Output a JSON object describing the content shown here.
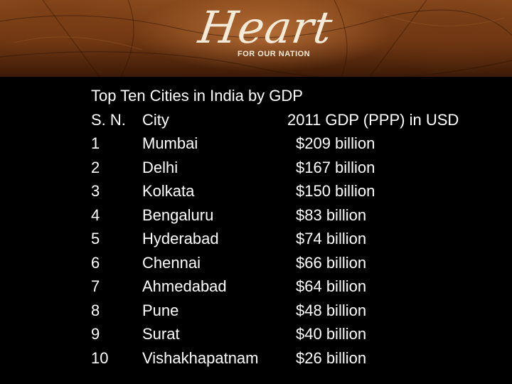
{
  "logo": {
    "script_text": "Heart",
    "subtitle": "FOR OUR NATION"
  },
  "table": {
    "title": "Top Ten Cities in India by GDP",
    "headers": [
      "S. N.",
      "City",
      "2011 GDP (PPP) in USD"
    ],
    "rows": [
      [
        "1",
        "Mumbai",
        "$209 billion"
      ],
      [
        "2",
        "Delhi",
        "$167 billion"
      ],
      [
        "3",
        "Kolkata",
        "$150 billion"
      ],
      [
        "4",
        "Bengaluru",
        "$83 billion"
      ],
      [
        "5",
        "Hyderabad",
        "$74 billion"
      ],
      [
        "6",
        "Chennai",
        "$66 billion"
      ],
      [
        "7",
        "Ahmedabad",
        "$64 billion"
      ],
      [
        "8",
        "Pune",
        "$48 billion"
      ],
      [
        "9",
        "Surat",
        "$40 billion"
      ],
      [
        "10",
        "Vishakhapatnam",
        "$26 billion"
      ]
    ]
  },
  "colors": {
    "background": "#000000",
    "text": "#ffffff",
    "banner": "#7a3f16",
    "logo": "#f4ead8"
  }
}
